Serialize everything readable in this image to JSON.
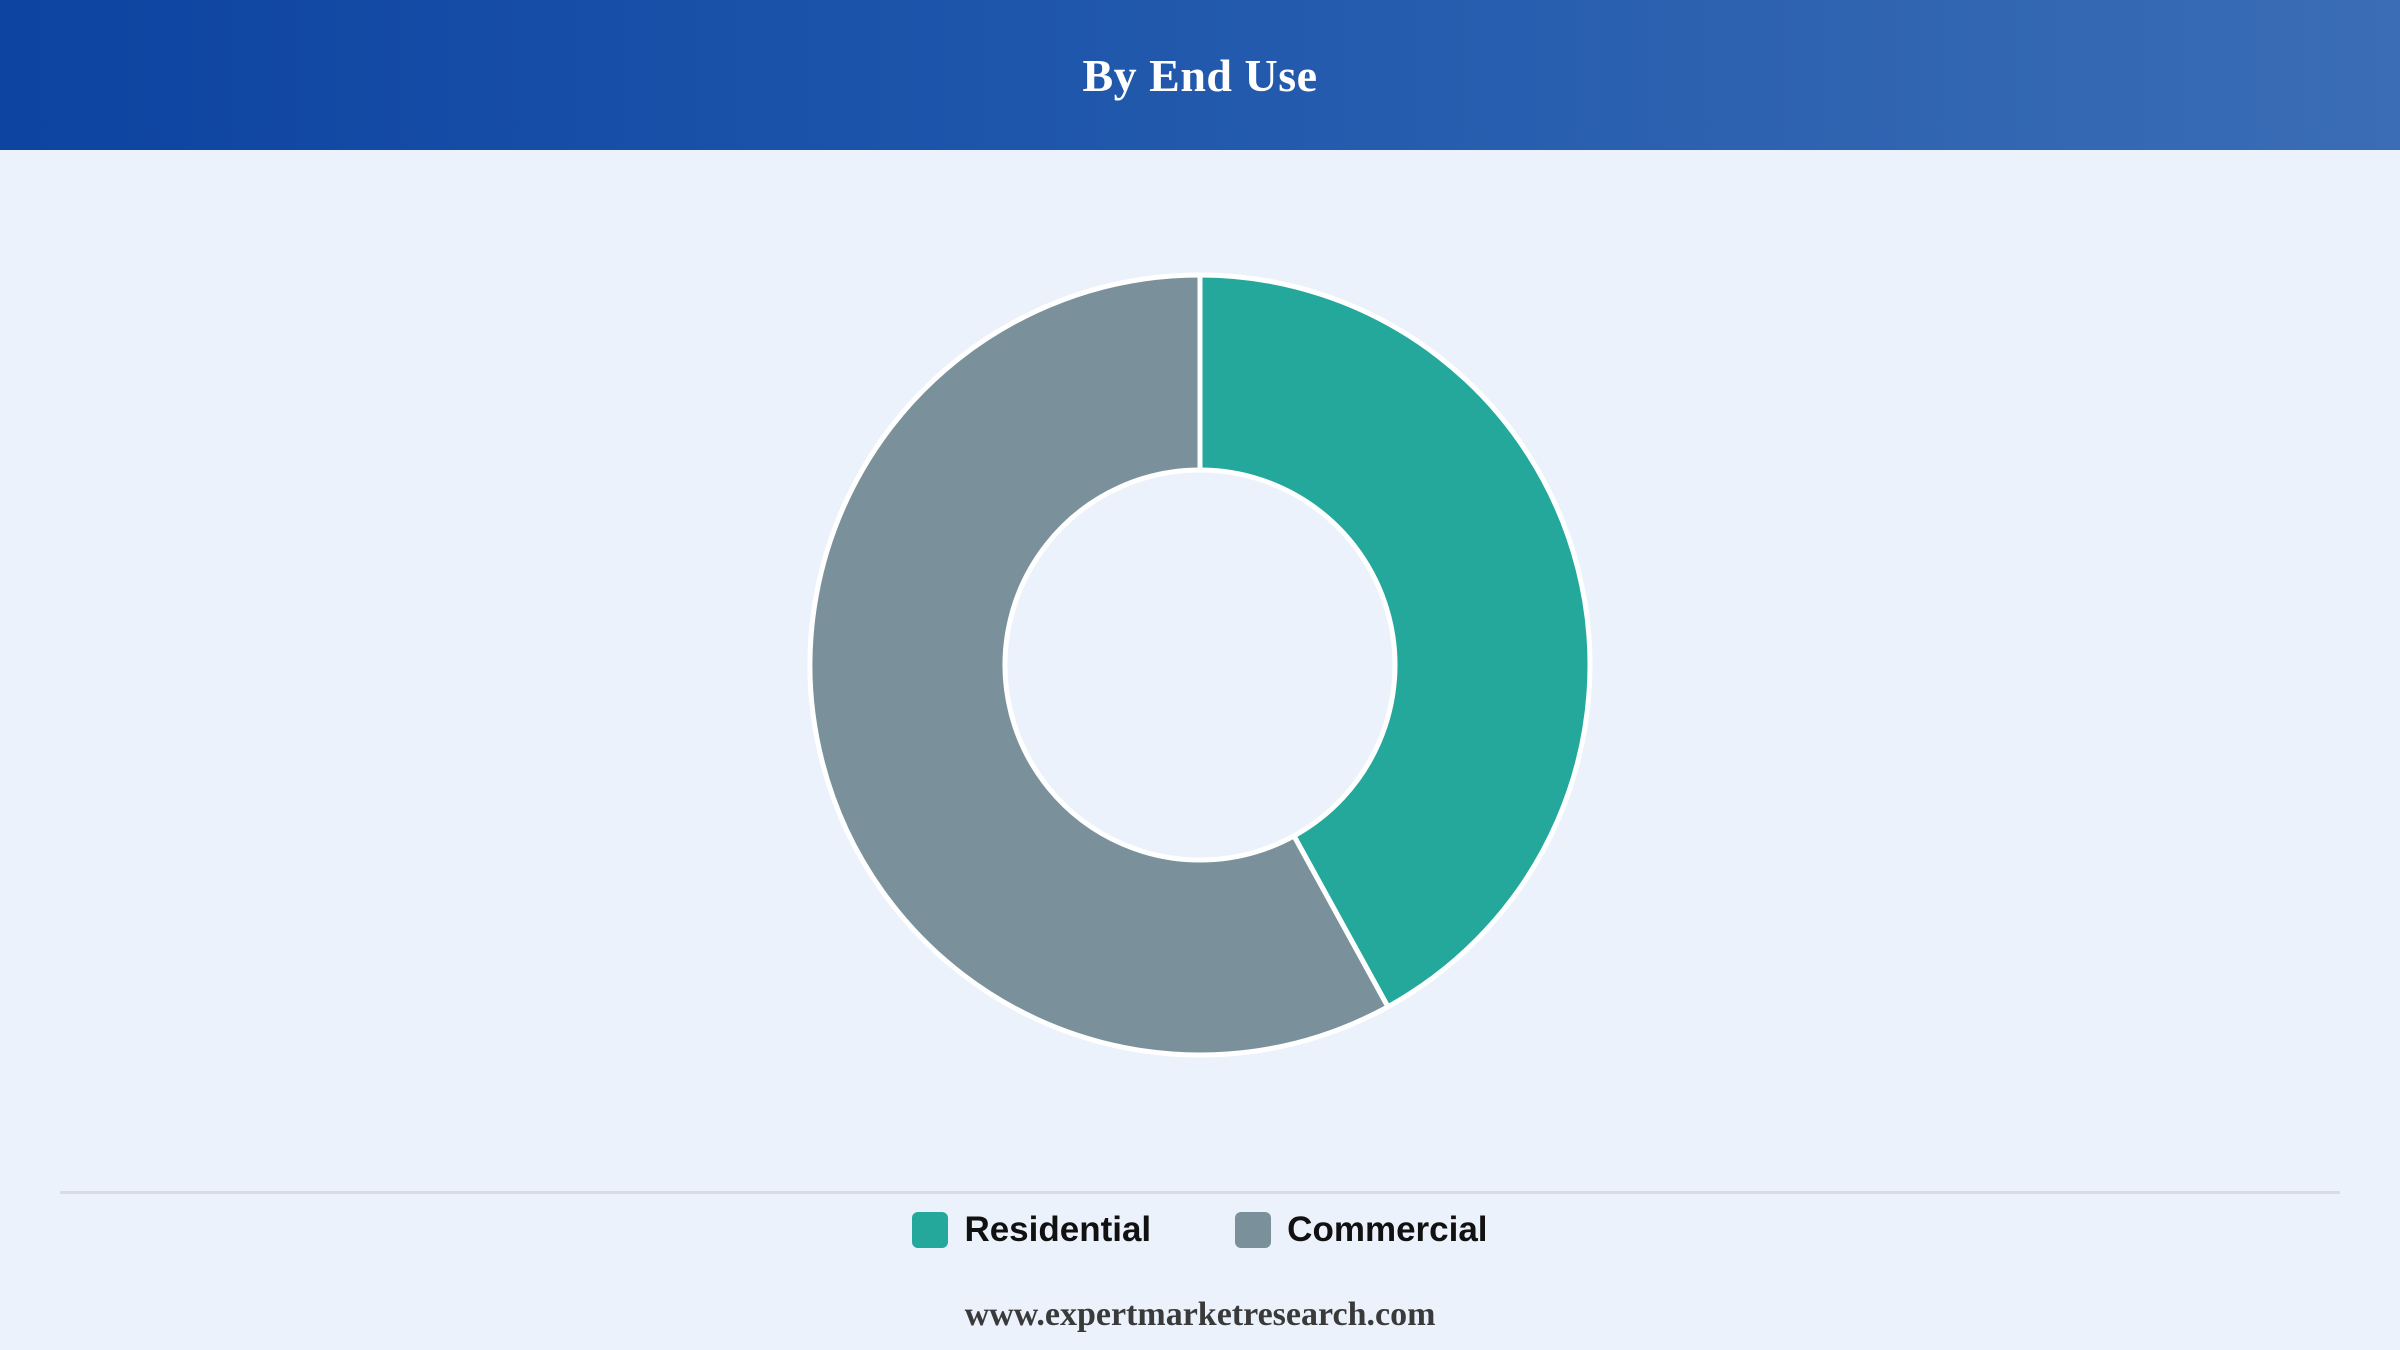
{
  "header": {
    "title": "By End Use"
  },
  "chart_data": {
    "type": "pie",
    "variant": "donut",
    "title": "By End Use",
    "series": [
      {
        "name": "Residential",
        "value": 42,
        "color": "#25a89c"
      },
      {
        "name": "Commercial",
        "value": 58,
        "color": "#7a919b"
      }
    ],
    "legend_position": "bottom-center"
  },
  "legend": {
    "items": [
      {
        "label": "Residential",
        "color": "#25a89c"
      },
      {
        "label": "Commercial",
        "color": "#7a919b"
      }
    ]
  },
  "footer": {
    "source": "www.expertmarketresearch.com"
  },
  "colors": {
    "header_start": "#0d43a1",
    "header_end": "#3a6db5",
    "background": "#ebf2fc"
  }
}
